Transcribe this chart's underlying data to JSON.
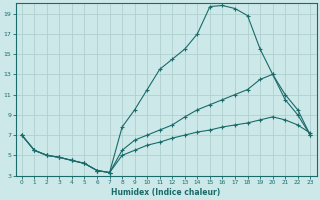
{
  "xlabel": "Humidex (Indice chaleur)",
  "xlim": [
    -0.5,
    23.5
  ],
  "ylim": [
    3,
    20
  ],
  "xticks": [
    0,
    1,
    2,
    3,
    4,
    5,
    6,
    7,
    8,
    9,
    10,
    11,
    12,
    13,
    14,
    15,
    16,
    17,
    18,
    19,
    20,
    21,
    22,
    23
  ],
  "yticks": [
    3,
    5,
    7,
    9,
    11,
    13,
    15,
    17,
    19
  ],
  "bg_color": "#cde8e8",
  "line_color": "#1a6b6b",
  "grid_color": "#b0d0d0",
  "series": [
    {
      "x": [
        0,
        1,
        2,
        3,
        4,
        5,
        6,
        7,
        8,
        9,
        10,
        11,
        12,
        13,
        14,
        15,
        16,
        17,
        18,
        19,
        20,
        21,
        22,
        23
      ],
      "y": [
        7.0,
        5.5,
        5.0,
        4.8,
        4.5,
        4.2,
        3.5,
        3.3,
        7.8,
        9.5,
        11.5,
        13.5,
        14.5,
        15.5,
        17.0,
        19.7,
        19.8,
        19.5,
        18.8,
        15.5,
        13.0,
        11.0,
        9.5,
        7.0
      ]
    },
    {
      "x": [
        0,
        1,
        2,
        3,
        4,
        5,
        6,
        7,
        8,
        9,
        10,
        11,
        12,
        13,
        14,
        15,
        16,
        17,
        18,
        19,
        20,
        21,
        22,
        23
      ],
      "y": [
        7.0,
        5.5,
        5.0,
        4.8,
        4.5,
        4.2,
        3.5,
        3.3,
        5.5,
        6.5,
        7.0,
        7.5,
        8.0,
        8.8,
        9.5,
        10.0,
        10.5,
        11.0,
        11.5,
        12.5,
        13.0,
        10.5,
        9.0,
        7.0
      ]
    },
    {
      "x": [
        0,
        1,
        2,
        3,
        4,
        5,
        6,
        7,
        8,
        9,
        10,
        11,
        12,
        13,
        14,
        15,
        16,
        17,
        18,
        19,
        20,
        21,
        22,
        23
      ],
      "y": [
        7.0,
        5.5,
        5.0,
        4.8,
        4.5,
        4.2,
        3.5,
        3.3,
        5.0,
        5.5,
        6.0,
        6.3,
        6.7,
        7.0,
        7.3,
        7.5,
        7.8,
        8.0,
        8.2,
        8.5,
        8.8,
        8.5,
        8.0,
        7.2
      ]
    }
  ]
}
